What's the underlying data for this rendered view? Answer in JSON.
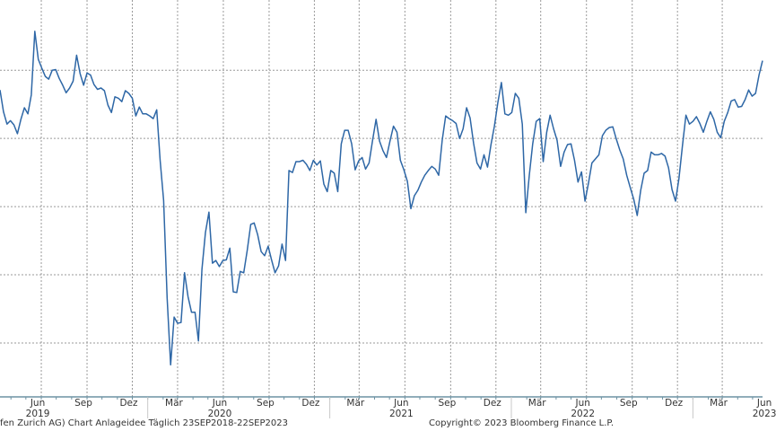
{
  "chart_data": {
    "type": "line",
    "title": "",
    "xlabel": "",
    "ylabel": "",
    "xlim": [
      "2019-03-10",
      "2023-05-21"
    ],
    "ylim": [
      0.21,
      6.03
    ],
    "y_axis_note": "y axis unlabeled; values in gridline units",
    "grid": true,
    "line_color": "#2e67a6",
    "y_gridlines": [
      1,
      2,
      3,
      4,
      5
    ],
    "x_gridlines": [
      "2019-06-01",
      "2019-09-01",
      "2019-12-01",
      "2020-03-01",
      "2020-06-01",
      "2020-09-01",
      "2020-12-01",
      "2021-03-01",
      "2021-06-01",
      "2021-09-01",
      "2021-12-01",
      "2022-03-01",
      "2022-06-01",
      "2022-09-01",
      "2022-12-01",
      "2023-03-01"
    ],
    "month_ticks": [
      {
        "date": "2019-06-01",
        "label": "Jun"
      },
      {
        "date": "2019-09-01",
        "label": "Sep"
      },
      {
        "date": "2019-12-01",
        "label": "Dez"
      },
      {
        "date": "2020-03-01",
        "label": "Mär"
      },
      {
        "date": "2020-06-01",
        "label": "Jun"
      },
      {
        "date": "2020-09-01",
        "label": "Sep"
      },
      {
        "date": "2020-12-01",
        "label": "Dez"
      },
      {
        "date": "2021-03-01",
        "label": "Mär"
      },
      {
        "date": "2021-06-01",
        "label": "Jun"
      },
      {
        "date": "2021-09-01",
        "label": "Sep"
      },
      {
        "date": "2021-12-01",
        "label": "Dez"
      },
      {
        "date": "2022-03-01",
        "label": "Mär"
      },
      {
        "date": "2022-06-01",
        "label": "Jun"
      },
      {
        "date": "2022-09-01",
        "label": "Sep"
      },
      {
        "date": "2022-12-01",
        "label": "Dez"
      },
      {
        "date": "2023-03-01",
        "label": "Mär"
      },
      {
        "date": "2023-06-01",
        "label": "Jun"
      }
    ],
    "year_ticks": [
      {
        "date": "2019-06-01",
        "label": "2019"
      },
      {
        "date": "2020-06-01",
        "label": "2020"
      },
      {
        "date": "2021-06-01",
        "label": "2021"
      },
      {
        "date": "2022-06-01",
        "label": "2022"
      },
      {
        "date": "2023-06-01",
        "label": "2023"
      }
    ],
    "series": [
      {
        "x": [
          "2019-03-10",
          "2019-03-17",
          "2019-03-24",
          "2019-03-31",
          "2019-04-07",
          "2019-04-14",
          "2019-04-21",
          "2019-04-28",
          "2019-05-05",
          "2019-05-12",
          "2019-05-19",
          "2019-05-26",
          "2019-06-02",
          "2019-06-09",
          "2019-06-16",
          "2019-06-23",
          "2019-06-30",
          "2019-07-07",
          "2019-07-14",
          "2019-07-21",
          "2019-07-28",
          "2019-08-04",
          "2019-08-11",
          "2019-08-18",
          "2019-08-25",
          "2019-09-01",
          "2019-09-08",
          "2019-09-15",
          "2019-09-22",
          "2019-09-29",
          "2019-10-06",
          "2019-10-13",
          "2019-10-20",
          "2019-10-27",
          "2019-11-03",
          "2019-11-10",
          "2019-11-17",
          "2019-11-24",
          "2019-12-01",
          "2019-12-08",
          "2019-12-15",
          "2019-12-22",
          "2019-12-29",
          "2020-01-05",
          "2020-01-12",
          "2020-01-19",
          "2020-01-26",
          "2020-02-02",
          "2020-02-09",
          "2020-02-16",
          "2020-02-23",
          "2020-03-01",
          "2020-03-08",
          "2020-03-15",
          "2020-03-22",
          "2020-03-29",
          "2020-04-05",
          "2020-04-12",
          "2020-04-19",
          "2020-04-26",
          "2020-05-03",
          "2020-05-10",
          "2020-05-17",
          "2020-05-24",
          "2020-05-31",
          "2020-06-07",
          "2020-06-14",
          "2020-06-21",
          "2020-06-28",
          "2020-07-05",
          "2020-07-12",
          "2020-07-19",
          "2020-07-26",
          "2020-08-02",
          "2020-08-09",
          "2020-08-16",
          "2020-08-23",
          "2020-08-30",
          "2020-09-06",
          "2020-09-13",
          "2020-09-20",
          "2020-09-27",
          "2020-10-04",
          "2020-10-11",
          "2020-10-18",
          "2020-10-25",
          "2020-11-01",
          "2020-11-08",
          "2020-11-15",
          "2020-11-22",
          "2020-11-29",
          "2020-12-06",
          "2020-12-13",
          "2020-12-20",
          "2020-12-27",
          "2021-01-03",
          "2021-01-10",
          "2021-01-17",
          "2021-01-24",
          "2021-01-31",
          "2021-02-07",
          "2021-02-14",
          "2021-02-21",
          "2021-02-28",
          "2021-03-07",
          "2021-03-14",
          "2021-03-21",
          "2021-03-28",
          "2021-04-04",
          "2021-04-11",
          "2021-04-18",
          "2021-04-25",
          "2021-05-02",
          "2021-05-09",
          "2021-05-16",
          "2021-05-23",
          "2021-05-30",
          "2021-06-06",
          "2021-06-13",
          "2021-06-20",
          "2021-06-27",
          "2021-07-04",
          "2021-07-11",
          "2021-07-18",
          "2021-07-25",
          "2021-08-01",
          "2021-08-08",
          "2021-08-15",
          "2021-08-22",
          "2021-08-29",
          "2021-09-05",
          "2021-09-12",
          "2021-09-19",
          "2021-09-26",
          "2021-10-03",
          "2021-10-10",
          "2021-10-17",
          "2021-10-24",
          "2021-10-31",
          "2021-11-07",
          "2021-11-14",
          "2021-11-21",
          "2021-11-28",
          "2021-12-05",
          "2021-12-12",
          "2021-12-19",
          "2021-12-26",
          "2022-01-02",
          "2022-01-09",
          "2022-01-16",
          "2022-01-23",
          "2022-01-30",
          "2022-02-06",
          "2022-02-13",
          "2022-02-20",
          "2022-02-27",
          "2022-03-06",
          "2022-03-13",
          "2022-03-20",
          "2022-03-27",
          "2022-04-03",
          "2022-04-10",
          "2022-04-17",
          "2022-04-24",
          "2022-05-01",
          "2022-05-08",
          "2022-05-15",
          "2022-05-22",
          "2022-05-29",
          "2022-06-05",
          "2022-06-12",
          "2022-06-19",
          "2022-06-26",
          "2022-07-03",
          "2022-07-10",
          "2022-07-17",
          "2022-07-24",
          "2022-07-31",
          "2022-08-07",
          "2022-08-14",
          "2022-08-21",
          "2022-08-28",
          "2022-09-04",
          "2022-09-11",
          "2022-09-18",
          "2022-09-25",
          "2022-10-02",
          "2022-10-09",
          "2022-10-16",
          "2022-10-23",
          "2022-10-30",
          "2022-11-06",
          "2022-11-13",
          "2022-11-20",
          "2022-11-27",
          "2022-12-04",
          "2022-12-11",
          "2022-12-18",
          "2022-12-25",
          "2023-01-01",
          "2023-01-08",
          "2023-01-15",
          "2023-01-22",
          "2023-01-29",
          "2023-02-05",
          "2023-02-12",
          "2023-02-19",
          "2023-02-26",
          "2023-03-05",
          "2023-03-12",
          "2023-03-19",
          "2023-03-26",
          "2023-04-02",
          "2023-04-09",
          "2023-04-16",
          "2023-04-23",
          "2023-04-30",
          "2023-05-07",
          "2023-05-14",
          "2023-05-21"
        ],
        "y": [
          4.71,
          4.39,
          4.21,
          4.26,
          4.2,
          4.07,
          4.28,
          4.45,
          4.36,
          4.64,
          5.57,
          5.16,
          5.03,
          4.91,
          4.87,
          5.0,
          5.01,
          4.88,
          4.78,
          4.67,
          4.74,
          4.84,
          5.22,
          4.95,
          4.78,
          4.96,
          4.93,
          4.79,
          4.72,
          4.74,
          4.7,
          4.49,
          4.38,
          4.61,
          4.59,
          4.54,
          4.7,
          4.66,
          4.59,
          4.33,
          4.46,
          4.36,
          4.36,
          4.33,
          4.29,
          4.42,
          3.68,
          3.09,
          1.66,
          0.68,
          1.38,
          1.29,
          1.3,
          2.03,
          1.68,
          1.45,
          1.45,
          1.03,
          2.08,
          2.62,
          2.92,
          2.17,
          2.21,
          2.12,
          2.21,
          2.22,
          2.39,
          1.75,
          1.74,
          2.05,
          2.03,
          2.36,
          2.74,
          2.76,
          2.59,
          2.34,
          2.28,
          2.42,
          2.22,
          2.03,
          2.13,
          2.45,
          2.21,
          3.53,
          3.5,
          3.66,
          3.66,
          3.68,
          3.62,
          3.53,
          3.68,
          3.61,
          3.67,
          3.33,
          3.22,
          3.53,
          3.49,
          3.22,
          3.92,
          4.12,
          4.12,
          3.92,
          3.54,
          3.67,
          3.72,
          3.55,
          3.64,
          3.97,
          4.28,
          3.96,
          3.82,
          3.72,
          3.96,
          4.18,
          4.09,
          3.68,
          3.54,
          3.37,
          2.97,
          3.16,
          3.24,
          3.36,
          3.46,
          3.53,
          3.59,
          3.55,
          3.46,
          3.97,
          4.33,
          4.29,
          4.26,
          4.22,
          4.0,
          4.14,
          4.45,
          4.3,
          3.93,
          3.64,
          3.55,
          3.76,
          3.58,
          3.91,
          4.18,
          4.53,
          4.82,
          4.36,
          4.34,
          4.38,
          4.66,
          4.59,
          4.21,
          2.91,
          3.46,
          3.92,
          4.25,
          4.29,
          3.66,
          4.09,
          4.34,
          4.14,
          3.97,
          3.59,
          3.8,
          3.91,
          3.92,
          3.68,
          3.36,
          3.51,
          3.08,
          3.34,
          3.64,
          3.7,
          3.76,
          4.04,
          4.12,
          4.16,
          4.17,
          3.99,
          3.83,
          3.7,
          3.46,
          3.28,
          3.11,
          2.87,
          3.24,
          3.49,
          3.53,
          3.8,
          3.76,
          3.76,
          3.78,
          3.74,
          3.57,
          3.25,
          3.08,
          3.41,
          3.89,
          4.34,
          4.21,
          4.25,
          4.32,
          4.22,
          4.09,
          4.25,
          4.39,
          4.28,
          4.09,
          4.01,
          4.25,
          4.38,
          4.55,
          4.57,
          4.46,
          4.47,
          4.57,
          4.71,
          4.62,
          4.66,
          4.93,
          5.14
        ]
      }
    ]
  },
  "footer": {
    "left": "fen Zurich AG) Chart Anlageidee  Täglich 23SEP2018-22SEP2023",
    "right": "Copyright© 2023 Bloomberg Finance L.P."
  }
}
